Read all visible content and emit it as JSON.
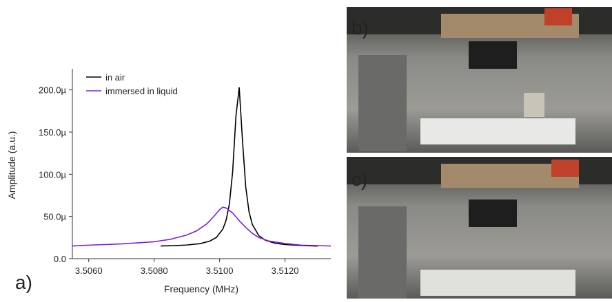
{
  "chart_data": {
    "type": "line",
    "xlabel": "Frequency (MHz)",
    "ylabel": "Amplitude (a.u.)",
    "xlim": [
      3.5055,
      3.5134
    ],
    "ylim": [
      0,
      225
    ],
    "xticks": [
      {
        "value": 3.506,
        "label": "3.5060"
      },
      {
        "value": 3.508,
        "label": "3.5080"
      },
      {
        "value": 3.51,
        "label": "3.5100"
      },
      {
        "value": 3.512,
        "label": "3.5120"
      }
    ],
    "yticks": [
      {
        "value": 0,
        "label": "0.0"
      },
      {
        "value": 50,
        "label": "50.0µ"
      },
      {
        "value": 100,
        "label": "100.0µ"
      },
      {
        "value": 150,
        "label": "150.0µ"
      },
      {
        "value": 200,
        "label": "200.0µ"
      }
    ],
    "legend": "upper left",
    "series": [
      {
        "name": "in air",
        "color": "#000000",
        "x": [
          3.5082,
          3.5086,
          3.509,
          3.5094,
          3.5097,
          3.5099,
          3.5101,
          3.5102,
          3.5103,
          3.5104,
          3.5105,
          3.5106,
          3.5107,
          3.5108,
          3.5109,
          3.511,
          3.5112,
          3.5114,
          3.5117,
          3.512,
          3.5125,
          3.513
        ],
        "values": [
          15,
          15.4,
          16.2,
          17.8,
          20.8,
          25.1,
          35.1,
          45.5,
          64.8,
          103.2,
          168.7,
          203,
          140,
          84.8,
          55.6,
          40.6,
          27.2,
          21.8,
          18.3,
          16.7,
          15.5,
          14.9
        ]
      },
      {
        "name": "immersed in liquid",
        "color": "#7b22d8",
        "x": [
          3.5055,
          3.506,
          3.507,
          3.508,
          3.5085,
          3.509,
          3.5093,
          3.5096,
          3.5098,
          3.51,
          3.5101,
          3.5102,
          3.5104,
          3.5106,
          3.5108,
          3.511,
          3.5112,
          3.5115,
          3.512,
          3.5125,
          3.513,
          3.5134
        ],
        "values": [
          15,
          16,
          17.5,
          20,
          23,
          28,
          33,
          41,
          49,
          58,
          61,
          60,
          54,
          45,
          37,
          30,
          25,
          21,
          18,
          16,
          15.5,
          15
        ]
      }
    ]
  },
  "panel_labels": [
    "a)",
    "b)",
    "c)"
  ]
}
